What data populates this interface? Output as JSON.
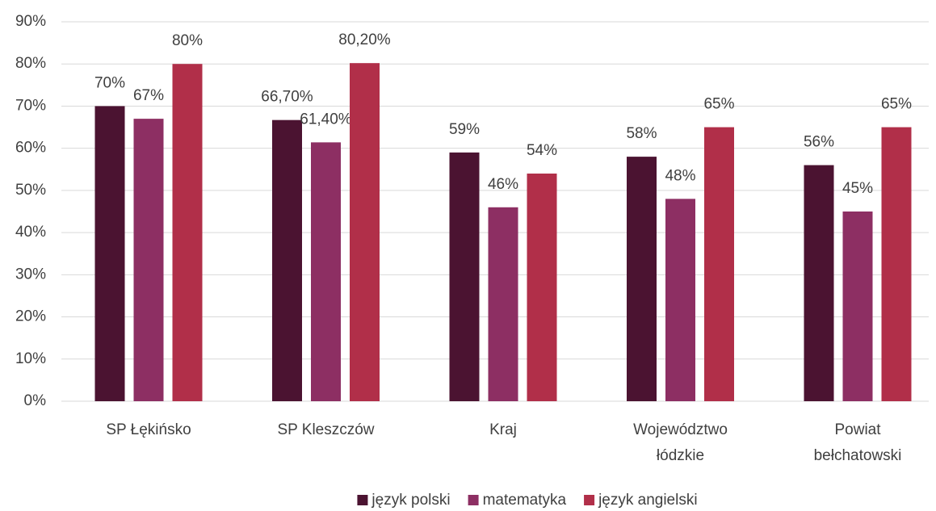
{
  "chart_data": {
    "type": "bar",
    "categories": [
      "SP Łękińsko",
      "SP Kleszczów",
      "Kraj",
      "Województwo łódzkie",
      "Powiat bełchatowski"
    ],
    "series": [
      {
        "name": "język polski",
        "color": "#4b1331",
        "values": [
          70,
          66.7,
          59,
          58,
          56
        ],
        "value_labels": [
          "70%",
          "66,70%",
          "59%",
          "58%",
          "56%"
        ]
      },
      {
        "name": "matematyka",
        "color": "#8d2f63",
        "values": [
          67,
          61.4,
          46,
          48,
          45
        ],
        "value_labels": [
          "67%",
          "61,40%",
          "46%",
          "48%",
          "45%"
        ]
      },
      {
        "name": "język angielski",
        "color": "#b12f49",
        "values": [
          80,
          80.2,
          54,
          65,
          65
        ],
        "value_labels": [
          "80%",
          "80,20%",
          "54%",
          "65%",
          "65%"
        ]
      }
    ],
    "ylim": [
      0,
      90
    ],
    "yticks": [
      {
        "value": 0,
        "label": "0%"
      },
      {
        "value": 10,
        "label": "10%"
      },
      {
        "value": 20,
        "label": "20%"
      },
      {
        "value": 30,
        "label": "30%"
      },
      {
        "value": 40,
        "label": "40%"
      },
      {
        "value": 50,
        "label": "50%"
      },
      {
        "value": 60,
        "label": "60%"
      },
      {
        "value": 70,
        "label": "70%"
      },
      {
        "value": 80,
        "label": "80%"
      },
      {
        "value": 90,
        "label": "90%"
      }
    ],
    "grid": true,
    "legend": "bottom"
  }
}
